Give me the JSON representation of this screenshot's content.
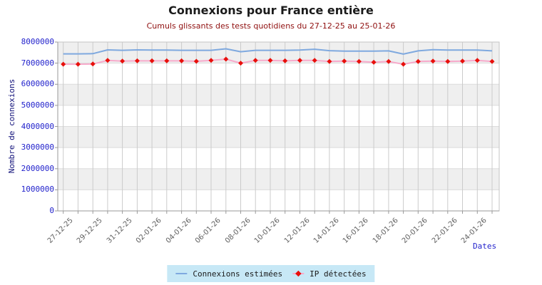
{
  "header": {
    "title": "Connexions pour France entière",
    "subtitle": "Cumuls glissants des tests quotidiens du 27-12-25 au 25-01-26"
  },
  "axes": {
    "y_title": "Nombre de connexions",
    "x_title": "Dates"
  },
  "legend": {
    "background": "#C7E8F6",
    "items": [
      {
        "label": "Connexions estimées",
        "swatch": "line",
        "color": "#7FA9DF"
      },
      {
        "label": "IP détectées",
        "swatch": "diamond-line",
        "color": "#E8100C",
        "line_color": "#F7AACB"
      }
    ]
  },
  "colors": {
    "title": "#1B1B1B",
    "subtitle": "#8F0F0F",
    "y_tick": "#2222CC",
    "y_title": "#11117A",
    "x_tick": "#5F5F5F",
    "x_title": "#2222CC",
    "band_gray": "#EFEFEF",
    "band_white": "#FFFFFF",
    "grid_vertical": "#CBCBCB",
    "grid_horizontal": "#DBDBDB",
    "plot_border": "#C5C5C5",
    "axis": "#999999"
  },
  "chart_data": {
    "type": "line",
    "title": "Connexions pour France entière",
    "subtitle": "Cumuls glissants des tests quotidiens du 27-12-25 au 25-01-26",
    "xlabel": "Dates",
    "ylabel": "Nombre de connexions",
    "ylim": [
      0,
      8000000
    ],
    "ytick_interval": 1000000,
    "x_labels_shown_every": 2,
    "grid": true,
    "legend_position": "bottom",
    "x": [
      "27-12-25",
      "28-12-25",
      "29-12-25",
      "30-12-25",
      "31-12-25",
      "01-01-26",
      "02-01-26",
      "03-01-26",
      "04-01-26",
      "05-01-26",
      "06-01-26",
      "07-01-26",
      "08-01-26",
      "09-01-26",
      "10-01-26",
      "11-01-26",
      "12-01-26",
      "13-01-26",
      "14-01-26",
      "15-01-26",
      "16-01-26",
      "17-01-26",
      "18-01-26",
      "19-01-26",
      "20-01-26",
      "21-01-26",
      "22-01-26",
      "23-01-26",
      "24-01-26",
      "25-01-26"
    ],
    "series": [
      {
        "name": "Connexions estimées",
        "style": "line",
        "color": "#7FA9DF",
        "values": [
          7440000,
          7440000,
          7450000,
          7630000,
          7610000,
          7630000,
          7620000,
          7620000,
          7610000,
          7610000,
          7610000,
          7680000,
          7540000,
          7610000,
          7610000,
          7610000,
          7620000,
          7660000,
          7590000,
          7570000,
          7570000,
          7570000,
          7580000,
          7430000,
          7580000,
          7640000,
          7620000,
          7620000,
          7620000,
          7580000
        ]
      },
      {
        "name": "IP détectées",
        "style": "line+diamond",
        "color": "#F7AACB",
        "marker_color": "#E8100C",
        "values": [
          6950000,
          6950000,
          6960000,
          7130000,
          7100000,
          7110000,
          7110000,
          7110000,
          7110000,
          7090000,
          7130000,
          7190000,
          7000000,
          7130000,
          7130000,
          7110000,
          7130000,
          7130000,
          7080000,
          7100000,
          7080000,
          7040000,
          7080000,
          6950000,
          7080000,
          7100000,
          7080000,
          7100000,
          7130000,
          7080000
        ]
      }
    ]
  }
}
